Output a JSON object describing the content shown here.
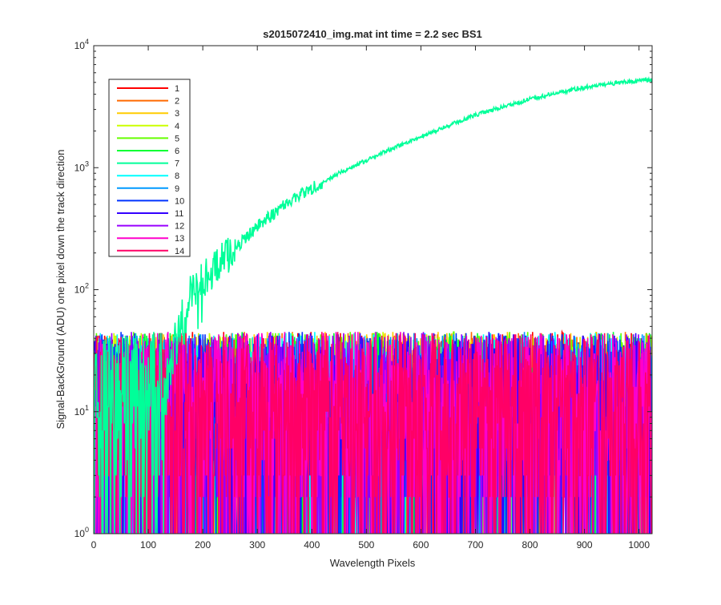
{
  "chart_data": {
    "type": "line",
    "title": "s2015072410_img.mat int time = 2.2 sec   BS1",
    "xlabel": "Wavelength Pixels",
    "ylabel": "Signal-BackGround (ADU) one pixel down the track direction",
    "xlim": [
      0,
      1024
    ],
    "ylim": [
      1,
      10000
    ],
    "yscale": "log",
    "grid": false,
    "legend_position": "top-left",
    "x_ticks": [
      "0",
      "100",
      "200",
      "300",
      "400",
      "500",
      "600",
      "700",
      "800",
      "900",
      "1000"
    ],
    "x_tick_values": [
      0,
      100,
      200,
      300,
      400,
      500,
      600,
      700,
      800,
      900,
      1000
    ],
    "y_ticks": [
      {
        "base": "10",
        "exp": "0",
        "value": 1
      },
      {
        "base": "10",
        "exp": "1",
        "value": 10
      },
      {
        "base": "10",
        "exp": "2",
        "value": 100
      },
      {
        "base": "10",
        "exp": "3",
        "value": 1000
      },
      {
        "base": "10",
        "exp": "4",
        "value": 10000
      }
    ],
    "x": {
      "start": 0,
      "end": 1024,
      "count": 1024
    },
    "series": [
      {
        "name": "1",
        "color": "#ff0000",
        "kind": "noise",
        "noise_range": [
          1,
          45
        ]
      },
      {
        "name": "2",
        "color": "#ff6a00",
        "kind": "noise",
        "noise_range": [
          1,
          45
        ]
      },
      {
        "name": "3",
        "color": "#ffcc00",
        "kind": "noise",
        "noise_range": [
          1,
          45
        ]
      },
      {
        "name": "4",
        "color": "#ccff00",
        "kind": "noise",
        "noise_range": [
          1,
          45
        ]
      },
      {
        "name": "5",
        "color": "#66ff00",
        "kind": "noise",
        "noise_range": [
          1,
          45
        ]
      },
      {
        "name": "6",
        "color": "#00ff33",
        "kind": "noise",
        "noise_range": [
          1,
          45
        ]
      },
      {
        "name": "7",
        "color": "#00ff99",
        "kind": "signal",
        "points": [
          [
            130,
            20
          ],
          [
            150,
            40
          ],
          [
            175,
            90
          ],
          [
            200,
            120
          ],
          [
            250,
            200
          ],
          [
            300,
            330
          ],
          [
            350,
            500
          ],
          [
            400,
            680
          ],
          [
            450,
            900
          ],
          [
            500,
            1150
          ],
          [
            550,
            1450
          ],
          [
            600,
            1800
          ],
          [
            650,
            2200
          ],
          [
            700,
            2700
          ],
          [
            750,
            3150
          ],
          [
            800,
            3650
          ],
          [
            850,
            4100
          ],
          [
            900,
            4550
          ],
          [
            950,
            4900
          ],
          [
            1000,
            5150
          ],
          [
            1024,
            5200
          ]
        ]
      },
      {
        "name": "8",
        "color": "#00ffff",
        "kind": "noise",
        "noise_range": [
          1,
          45
        ]
      },
      {
        "name": "9",
        "color": "#0099ff",
        "kind": "noise",
        "noise_range": [
          1,
          45
        ]
      },
      {
        "name": "10",
        "color": "#0033ff",
        "kind": "noise",
        "noise_range": [
          1,
          45
        ]
      },
      {
        "name": "11",
        "color": "#3300ff",
        "kind": "noise",
        "noise_range": [
          1,
          45
        ]
      },
      {
        "name": "12",
        "color": "#9900ff",
        "kind": "noise",
        "noise_range": [
          1,
          45
        ]
      },
      {
        "name": "13",
        "color": "#ff00cc",
        "kind": "noise",
        "noise_range": [
          1,
          45
        ]
      },
      {
        "name": "14",
        "color": "#ff0066",
        "kind": "noise",
        "noise_range": [
          1,
          45
        ]
      }
    ]
  }
}
